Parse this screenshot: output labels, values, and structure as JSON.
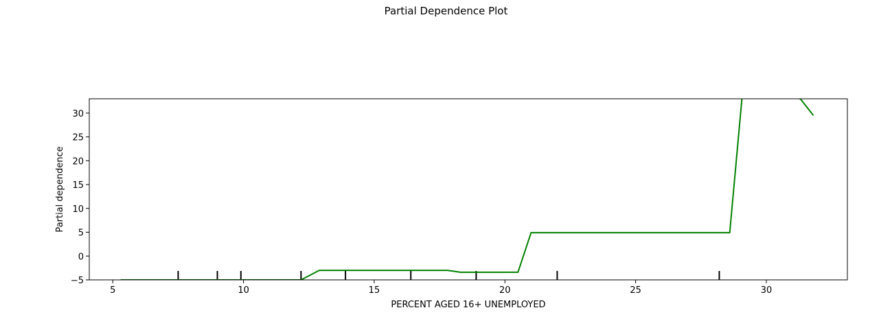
{
  "chart_data": {
    "type": "line",
    "title": "Partial Dependence Plot",
    "xlabel": "PERCENT AGED 16+ UNEMPLOYED",
    "ylabel": "Partial dependence",
    "xlim": [
      4.1,
      33.1
    ],
    "ylim": [
      -5,
      33
    ],
    "xticks": [
      5,
      10,
      15,
      20,
      25,
      30
    ],
    "yticks": [
      -5,
      0,
      5,
      10,
      15,
      20,
      25,
      30
    ],
    "grid": false,
    "line_color": "#008000",
    "rug_color": "#000000",
    "series": [
      {
        "x": [
          5.3,
          12.2,
          12.9,
          17.8,
          18.3,
          20.5,
          21.0,
          28.6,
          29.1,
          31.3,
          31.8
        ],
        "y": [
          -5.0,
          -5.0,
          -3.0,
          -3.0,
          -3.4,
          -3.4,
          4.9,
          4.9,
          35.0,
          33.0,
          29.5
        ]
      }
    ],
    "rug_x": [
      7.5,
      9.0,
      9.9,
      12.2,
      13.9,
      16.4,
      18.9,
      22.0,
      28.2
    ]
  }
}
